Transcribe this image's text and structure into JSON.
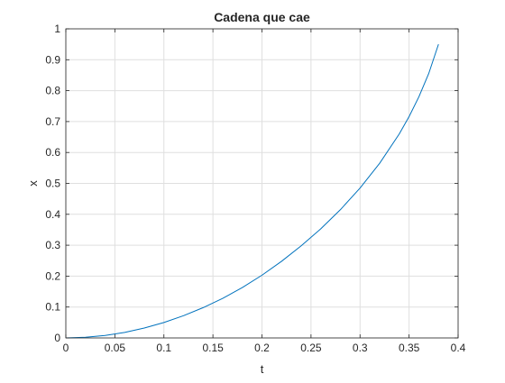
{
  "chart_data": {
    "type": "line",
    "title": "Cadena que cae",
    "xlabel": "t",
    "ylabel": "x",
    "xlim": [
      0,
      0.4
    ],
    "ylim": [
      0,
      1
    ],
    "grid": true,
    "xticks": [
      "0",
      "0.05",
      "0.1",
      "0.15",
      "0.2",
      "0.25",
      "0.3",
      "0.35",
      "0.4"
    ],
    "yticks": [
      "0",
      "0.1",
      "0.2",
      "0.3",
      "0.4",
      "0.5",
      "0.6",
      "0.7",
      "0.8",
      "0.9",
      "1"
    ],
    "series": [
      {
        "color": "#0072BD",
        "x": [
          0,
          0.02,
          0.04,
          0.06,
          0.08,
          0.1,
          0.12,
          0.14,
          0.16,
          0.18,
          0.2,
          0.22,
          0.24,
          0.26,
          0.28,
          0.3,
          0.32,
          0.34,
          0.35,
          0.36,
          0.37,
          0.38
        ],
        "y": [
          0,
          0.002,
          0.008,
          0.018,
          0.032,
          0.05,
          0.072,
          0.098,
          0.128,
          0.163,
          0.203,
          0.248,
          0.298,
          0.353,
          0.415,
          0.485,
          0.565,
          0.66,
          0.716,
          0.78,
          0.855,
          0.95
        ]
      }
    ]
  }
}
